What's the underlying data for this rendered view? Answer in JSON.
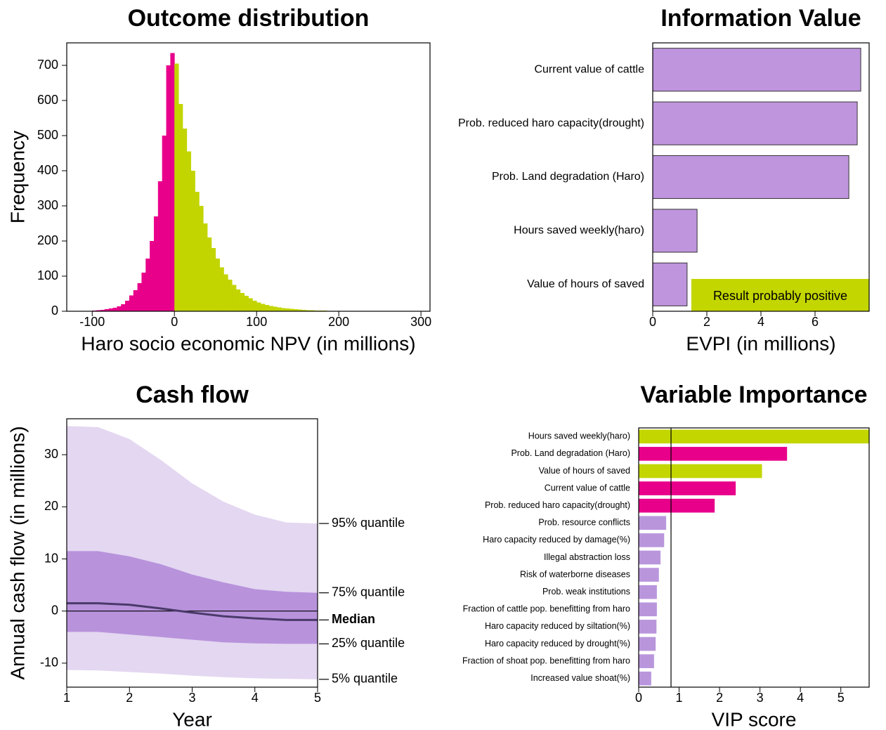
{
  "chart_data": [
    {
      "type": "histogram",
      "title": "Outcome distribution",
      "xlabel": "Haro socio economic NPV (in millions)",
      "ylabel": "Frequency",
      "bins": [
        -100,
        -95,
        -90,
        -85,
        -80,
        -75,
        -70,
        -65,
        -60,
        -55,
        -50,
        -45,
        -40,
        -35,
        -30,
        -25,
        -20,
        -15,
        -10,
        -5,
        0,
        5,
        10,
        15,
        20,
        25,
        30,
        35,
        40,
        45,
        50,
        55,
        60,
        65,
        70,
        75,
        80,
        85,
        90,
        95,
        100,
        105,
        110,
        115,
        120,
        125,
        130,
        135,
        140,
        145,
        150,
        155,
        160,
        165,
        170,
        175,
        180,
        185,
        190,
        195,
        200,
        205,
        210
      ],
      "counts": [
        2,
        3,
        4,
        6,
        8,
        10,
        14,
        20,
        30,
        45,
        60,
        80,
        110,
        150,
        200,
        270,
        370,
        500,
        700,
        735,
        705,
        590,
        520,
        455,
        400,
        340,
        300,
        250,
        210,
        180,
        150,
        125,
        105,
        90,
        75,
        62,
        52,
        44,
        37,
        30,
        25,
        21,
        18,
        15,
        13,
        11,
        9,
        8,
        7,
        6,
        5,
        4,
        3,
        3,
        2,
        2,
        2,
        1,
        1,
        1,
        1,
        1
      ],
      "color_negative": "#e8008b",
      "color_positive": "#c2d500",
      "xlim": [
        -131,
        311
      ],
      "ylim": [
        0,
        764
      ],
      "xticks": [
        -100,
        0,
        100,
        200,
        300
      ],
      "yticks": [
        0,
        100,
        200,
        300,
        400,
        500,
        600,
        700
      ]
    },
    {
      "type": "hbar",
      "title": "Information Value",
      "xlabel": "EVPI (in millions)",
      "categories": [
        "Current value of cattle",
        "Prob. reduced haro capacity(drought)",
        "Prob. Land degradation (Haro)",
        "Hours saved weekly(haro)",
        "Value of hours of saved"
      ],
      "values": [
        7.69,
        7.56,
        7.25,
        1.64,
        1.27
      ],
      "color": "#bf95de",
      "xlim": [
        0,
        8
      ],
      "xticks": [
        0,
        2,
        4,
        6
      ],
      "annotation": "Result probably positive",
      "annotation_color": "#c3d600"
    },
    {
      "type": "band",
      "title": "Cash flow",
      "xlabel": "Year",
      "ylabel": "Annual cash flow (in millions)",
      "x": [
        1,
        1.5,
        2,
        2.5,
        3,
        3.5,
        4,
        4.5,
        5
      ],
      "series": [
        {
          "name": "95% quantile",
          "color": "#e4d7f1",
          "values": [
            35.5,
            35.3,
            33,
            29,
            24.5,
            21,
            18.5,
            17,
            16.8
          ]
        },
        {
          "name": "75% quantile",
          "color": "#b893dc",
          "values": [
            11.5,
            11.5,
            10.5,
            9,
            7,
            5.5,
            4.2,
            3.7,
            3.5
          ]
        },
        {
          "name": "Median",
          "color": "#4a3a6a",
          "values": [
            1.5,
            1.5,
            1.2,
            0.5,
            -0.3,
            -1,
            -1.4,
            -1.7,
            -1.7
          ]
        },
        {
          "name": "25% quantile",
          "color": "#b893dc",
          "values": [
            -4,
            -4,
            -4.5,
            -5,
            -5.5,
            -6,
            -6.2,
            -6.3,
            -6.3
          ]
        },
        {
          "name": "5% quantile",
          "color": "#e4d7f1",
          "values": [
            -11.3,
            -11.4,
            -11.7,
            -12,
            -12.4,
            -12.7,
            -12.9,
            -13,
            -13.1
          ]
        }
      ],
      "xlim": [
        1,
        5
      ],
      "ylim": [
        -14.6,
        36.9
      ],
      "xticks": [
        1,
        2,
        3,
        4,
        5
      ],
      "yticks": [
        -10,
        0,
        10,
        20,
        30
      ],
      "zero_line": true
    },
    {
      "type": "hbar",
      "title": "Variable Importance",
      "xlabel": "VIP score",
      "categories": [
        "Hours saved weekly(haro)",
        "Prob. Land degradation (Haro)",
        "Value of hours of saved",
        "Current value of cattle",
        "Prob. reduced haro capacity(drought)",
        "Prob. resource conflicts",
        "Haro capacity reduced by damage(%)",
        "Illegal abstraction loss",
        "Risk of waterborne diseases",
        "Prob. weak institutions",
        "Fraction of cattle pop. benefitting from haro",
        "Haro capacity reduced by siltation(%)",
        "Haro capacity reduced by drought(%)",
        "Fraction of shoat pop. benefitting from haro",
        "Increased value shoat(%)"
      ],
      "values": [
        5.7,
        3.67,
        3.05,
        2.4,
        1.88,
        0.68,
        0.63,
        0.54,
        0.5,
        0.45,
        0.45,
        0.44,
        0.42,
        0.38,
        0.31
      ],
      "colors": [
        "#c3d600",
        "#e8008b",
        "#c3d600",
        "#e8008b",
        "#e8008b",
        "#b996dc",
        "#b996dc",
        "#b996dc",
        "#b996dc",
        "#b996dc",
        "#b996dc",
        "#b996dc",
        "#b996dc",
        "#b996dc",
        "#b996dc"
      ],
      "xlim": [
        0,
        5.7
      ],
      "xticks": [
        0,
        1,
        2,
        3,
        4,
        5
      ],
      "threshold": 0.8
    }
  ]
}
